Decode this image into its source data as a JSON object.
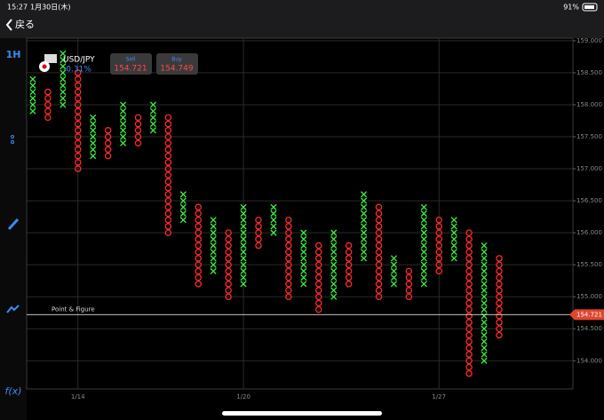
{
  "status_bar": {
    "time": "15:27",
    "date": "1月30日(木)",
    "battery": "91%"
  },
  "nav": {
    "back": "戻る"
  },
  "sidebar": {
    "timeframe": "1H",
    "function": "f(x)"
  },
  "ticker": {
    "symbol": "USD/JPY",
    "change": "-0.31%",
    "sell_label": "Sell",
    "sell": "154.721",
    "buy_label": "Buy",
    "buy": "154.749"
  },
  "chart_data": {
    "type": "point_figure",
    "title": "Point & Figure",
    "box_size": 0.1,
    "colors": {
      "X": "#3cf03c",
      "O": "#ff2a2a"
    },
    "columns": [
      {
        "kind": "X",
        "high": 158.4,
        "low": 157.9
      },
      {
        "kind": "O",
        "high": 158.2,
        "low": 157.8
      },
      {
        "kind": "X",
        "high": 158.8,
        "low": 158.0
      },
      {
        "kind": "O",
        "high": 158.5,
        "low": 157.0
      },
      {
        "kind": "X",
        "high": 157.8,
        "low": 157.2
      },
      {
        "kind": "O",
        "high": 157.6,
        "low": 157.2
      },
      {
        "kind": "X",
        "high": 158.0,
        "low": 157.4
      },
      {
        "kind": "O",
        "high": 157.8,
        "low": 157.4
      },
      {
        "kind": "X",
        "high": 158.0,
        "low": 157.6
      },
      {
        "kind": "O",
        "high": 157.8,
        "low": 156.0
      },
      {
        "kind": "X",
        "high": 156.6,
        "low": 156.2
      },
      {
        "kind": "O",
        "high": 156.4,
        "low": 155.2
      },
      {
        "kind": "X",
        "high": 156.2,
        "low": 155.4
      },
      {
        "kind": "O",
        "high": 156.0,
        "low": 155.0
      },
      {
        "kind": "X",
        "high": 156.4,
        "low": 155.2
      },
      {
        "kind": "O",
        "high": 156.2,
        "low": 155.8
      },
      {
        "kind": "X",
        "high": 156.4,
        "low": 156.0
      },
      {
        "kind": "O",
        "high": 156.2,
        "low": 155.0
      },
      {
        "kind": "X",
        "high": 156.0,
        "low": 155.2
      },
      {
        "kind": "O",
        "high": 155.8,
        "low": 154.8
      },
      {
        "kind": "X",
        "high": 156.0,
        "low": 155.0
      },
      {
        "kind": "O",
        "high": 155.8,
        "low": 155.2
      },
      {
        "kind": "X",
        "high": 156.6,
        "low": 155.6
      },
      {
        "kind": "O",
        "high": 156.4,
        "low": 155.0
      },
      {
        "kind": "X",
        "high": 155.6,
        "low": 155.2
      },
      {
        "kind": "O",
        "high": 155.4,
        "low": 155.0
      },
      {
        "kind": "X",
        "high": 156.4,
        "low": 155.2
      },
      {
        "kind": "O",
        "high": 156.2,
        "low": 155.4
      },
      {
        "kind": "X",
        "high": 156.2,
        "low": 155.6
      },
      {
        "kind": "O",
        "high": 156.0,
        "low": 153.8
      },
      {
        "kind": "X",
        "high": 155.8,
        "low": 154.0
      },
      {
        "kind": "O",
        "high": 155.6,
        "low": 154.4
      }
    ],
    "xlim": [
      -0.41,
      35.9
    ],
    "xticks": [
      {
        "value": 3,
        "label": "1/14"
      },
      {
        "value": 14,
        "label": "1/20"
      },
      {
        "value": 27,
        "label": "1/27"
      }
    ],
    "ylim": [
      153.56,
      159.04
    ],
    "yticks": [
      {
        "value": 159,
        "label": "159.000"
      },
      {
        "value": 158.5,
        "label": "158.500"
      },
      {
        "value": 158,
        "label": "158.000"
      },
      {
        "value": 157.5,
        "label": "157.500"
      },
      {
        "value": 157,
        "label": "157.000"
      },
      {
        "value": 156.5,
        "label": "156.500"
      },
      {
        "value": 156,
        "label": "156.000"
      },
      {
        "value": 155.5,
        "label": "155.500"
      },
      {
        "value": 155,
        "label": "155.000"
      },
      {
        "value": 154.5,
        "label": "154.500"
      },
      {
        "value": 154,
        "label": "154.000"
      }
    ],
    "current_price": 154.721,
    "grid": true
  }
}
